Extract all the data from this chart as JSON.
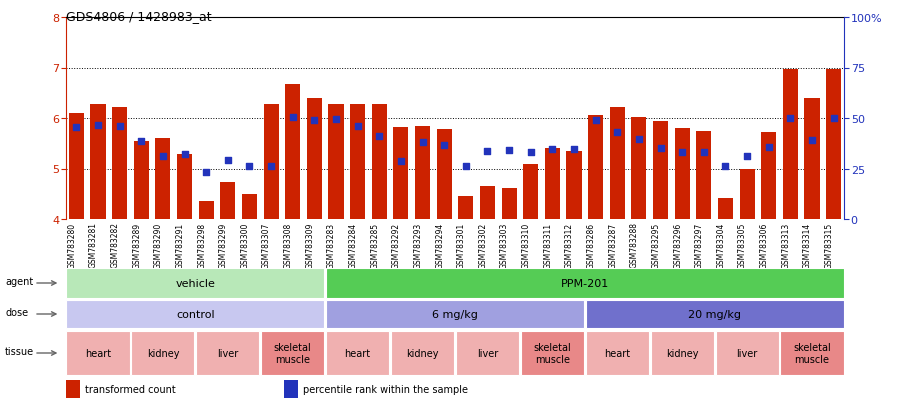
{
  "title": "GDS4806 / 1428983_at",
  "samples": [
    "GSM783280",
    "GSM783281",
    "GSM783282",
    "GSM783289",
    "GSM783290",
    "GSM783291",
    "GSM783298",
    "GSM783299",
    "GSM783300",
    "GSM783307",
    "GSM783308",
    "GSM783309",
    "GSM783283",
    "GSM783284",
    "GSM783285",
    "GSM783292",
    "GSM783293",
    "GSM783294",
    "GSM783301",
    "GSM783302",
    "GSM783303",
    "GSM783310",
    "GSM783311",
    "GSM783312",
    "GSM783286",
    "GSM783287",
    "GSM783288",
    "GSM783295",
    "GSM783296",
    "GSM783297",
    "GSM783304",
    "GSM783305",
    "GSM783306",
    "GSM783313",
    "GSM783314",
    "GSM783315"
  ],
  "bar_values": [
    6.1,
    6.28,
    6.22,
    5.55,
    5.6,
    5.28,
    4.35,
    4.73,
    4.5,
    6.27,
    6.68,
    6.4,
    6.27,
    6.27,
    6.28,
    5.82,
    5.85,
    5.78,
    4.45,
    4.65,
    4.62,
    5.08,
    5.4,
    5.35,
    6.05,
    6.22,
    6.02,
    5.95,
    5.8,
    5.75,
    4.42,
    5.0,
    5.72,
    6.98,
    6.4,
    6.97
  ],
  "percentile_values": [
    5.83,
    5.87,
    5.85,
    5.55,
    5.25,
    5.28,
    4.93,
    5.16,
    5.04,
    5.04,
    6.01,
    5.97,
    5.99,
    5.84,
    5.64,
    5.15,
    5.53,
    5.47,
    5.04,
    5.35,
    5.36,
    5.33,
    5.38,
    5.38,
    5.97,
    5.72,
    5.58,
    5.4,
    5.33,
    5.33,
    5.05,
    5.24,
    5.42,
    6.0,
    5.56,
    6.0
  ],
  "bar_color": "#cc2200",
  "dot_color": "#2233bb",
  "ylim": [
    4.0,
    8.0
  ],
  "yticks": [
    4,
    5,
    6,
    7,
    8
  ],
  "dotted_lines": [
    5.0,
    6.0,
    7.0
  ],
  "right_ytick_vals": [
    0,
    25,
    50,
    75,
    100
  ],
  "right_ytick_labels": [
    "0",
    "25",
    "50",
    "75",
    "100%"
  ],
  "agent_groups": [
    {
      "label": "vehicle",
      "start": 0,
      "end": 12,
      "color": "#b8e8b8"
    },
    {
      "label": "PPM-201",
      "start": 12,
      "end": 36,
      "color": "#55cc55"
    }
  ],
  "dose_groups": [
    {
      "label": "control",
      "start": 0,
      "end": 12,
      "color": "#c8c8f0"
    },
    {
      "label": "6 mg/kg",
      "start": 12,
      "end": 24,
      "color": "#a0a0e0"
    },
    {
      "label": "20 mg/kg",
      "start": 24,
      "end": 36,
      "color": "#7070cc"
    }
  ],
  "tissue_groups": [
    {
      "label": "heart",
      "start": 0,
      "end": 3,
      "color": "#f0b0b0"
    },
    {
      "label": "kidney",
      "start": 3,
      "end": 6,
      "color": "#f0b0b0"
    },
    {
      "label": "liver",
      "start": 6,
      "end": 9,
      "color": "#f0b0b0"
    },
    {
      "label": "skeletal\nmuscle",
      "start": 9,
      "end": 12,
      "color": "#e88888"
    },
    {
      "label": "heart",
      "start": 12,
      "end": 15,
      "color": "#f0b0b0"
    },
    {
      "label": "kidney",
      "start": 15,
      "end": 18,
      "color": "#f0b0b0"
    },
    {
      "label": "liver",
      "start": 18,
      "end": 21,
      "color": "#f0b0b0"
    },
    {
      "label": "skeletal\nmuscle",
      "start": 21,
      "end": 24,
      "color": "#e88888"
    },
    {
      "label": "heart",
      "start": 24,
      "end": 27,
      "color": "#f0b0b0"
    },
    {
      "label": "kidney",
      "start": 27,
      "end": 30,
      "color": "#f0b0b0"
    },
    {
      "label": "liver",
      "start": 30,
      "end": 33,
      "color": "#f0b0b0"
    },
    {
      "label": "skeletal\nmuscle",
      "start": 33,
      "end": 36,
      "color": "#e88888"
    }
  ],
  "legend_items": [
    {
      "label": "transformed count",
      "color": "#cc2200"
    },
    {
      "label": "percentile rank within the sample",
      "color": "#2233bb"
    }
  ],
  "xtick_bg_color": "#dddddd",
  "row_label_color": "#444444"
}
